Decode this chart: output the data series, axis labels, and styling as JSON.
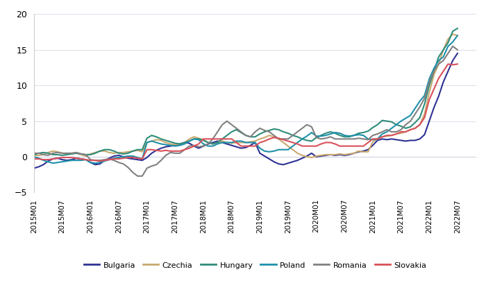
{
  "title": "",
  "countries": [
    "Bulgaria",
    "Czechia",
    "Hungary",
    "Poland",
    "Romania",
    "Slovakia"
  ],
  "colors": [
    "#2e3192",
    "#c8a96e",
    "#2e8b7a",
    "#1e90aa",
    "#808080",
    "#d94f5a"
  ],
  "linewidths": [
    1.5,
    1.5,
    1.5,
    1.5,
    1.5,
    1.5
  ],
  "ylim": [
    -5,
    20
  ],
  "yticks": [
    -5,
    0,
    5,
    10,
    15,
    20
  ],
  "background_color": "#ffffff",
  "grid_color": "#d0d0e0",
  "tick_labels": [
    "2015M01",
    "2015M07",
    "2016M01",
    "2016M07",
    "2017M01",
    "2017M07",
    "2018M01",
    "2018M07",
    "2019M01",
    "2019M07",
    "2020M01",
    "2020M07",
    "2021M01",
    "2021M07",
    "2022M01",
    "2022M07"
  ],
  "tick_positions": [
    0,
    6,
    12,
    18,
    24,
    30,
    36,
    42,
    48,
    54,
    60,
    66,
    72,
    78,
    84,
    90
  ],
  "data": {
    "Bulgaria": [
      -1.6,
      -1.4,
      -1.1,
      -0.6,
      -0.3,
      -0.2,
      -0.4,
      -0.5,
      -0.4,
      -0.2,
      -0.3,
      -0.4,
      -0.8,
      -1.1,
      -1.0,
      -0.5,
      -0.2,
      0.1,
      0.2,
      0.0,
      -0.2,
      -0.3,
      -0.4,
      -0.5,
      -0.1,
      0.5,
      0.9,
      1.2,
      1.4,
      1.5,
      1.6,
      1.8,
      2.0,
      1.9,
      1.5,
      1.2,
      1.5,
      1.8,
      2.0,
      2.2,
      2.0,
      1.8,
      1.6,
      1.4,
      1.2,
      1.3,
      1.6,
      2.0,
      0.5,
      0.1,
      -0.3,
      -0.7,
      -1.0,
      -1.1,
      -0.9,
      -0.7,
      -0.5,
      -0.2,
      0.1,
      0.5,
      0.0,
      0.1,
      0.2,
      0.3,
      0.2,
      0.3,
      0.2,
      0.3,
      0.5,
      0.7,
      0.8,
      1.0,
      1.6,
      2.3,
      2.5,
      2.4,
      2.5,
      2.4,
      2.3,
      2.2,
      2.3,
      2.3,
      2.5,
      3.1,
      5.0,
      6.9,
      8.5,
      10.5,
      12.0,
      13.5,
      14.5
    ],
    "Czechia": [
      0.2,
      0.2,
      0.3,
      0.6,
      0.8,
      0.7,
      0.5,
      0.4,
      0.5,
      0.5,
      0.3,
      0.1,
      0.4,
      0.6,
      0.8,
      0.8,
      0.6,
      0.5,
      0.6,
      0.6,
      0.7,
      0.8,
      0.9,
      0.7,
      2.0,
      2.2,
      2.4,
      2.3,
      2.0,
      1.8,
      1.7,
      1.8,
      2.0,
      2.5,
      2.8,
      2.6,
      2.4,
      2.0,
      1.8,
      2.0,
      2.2,
      2.0,
      1.9,
      2.0,
      2.0,
      2.0,
      2.1,
      2.2,
      2.5,
      2.7,
      3.0,
      2.8,
      2.5,
      2.0,
      1.5,
      1.0,
      0.5,
      0.2,
      0.0,
      -0.1,
      0.1,
      0.2,
      0.3,
      0.3,
      0.3,
      0.4,
      0.3,
      0.4,
      0.5,
      0.8,
      0.7,
      0.7,
      2.1,
      2.5,
      2.8,
      2.9,
      3.0,
      3.2,
      3.3,
      3.5,
      3.8,
      4.0,
      4.5,
      6.0,
      9.0,
      11.5,
      13.0,
      15.0,
      16.5,
      17.2,
      17.0
    ],
    "Hungary": [
      0.3,
      0.5,
      0.6,
      0.5,
      0.3,
      0.3,
      0.2,
      0.3,
      0.4,
      0.5,
      0.4,
      0.3,
      0.3,
      0.5,
      0.8,
      1.0,
      1.0,
      0.8,
      0.5,
      0.4,
      0.5,
      0.8,
      1.0,
      1.0,
      2.6,
      3.0,
      2.8,
      2.5,
      2.3,
      2.1,
      1.9,
      1.8,
      2.0,
      2.2,
      2.5,
      2.5,
      2.3,
      2.0,
      1.8,
      2.0,
      2.5,
      3.0,
      3.5,
      3.8,
      3.4,
      3.0,
      2.8,
      2.8,
      3.2,
      3.5,
      3.7,
      3.9,
      3.8,
      3.5,
      3.3,
      3.0,
      2.8,
      2.5,
      2.3,
      2.2,
      2.7,
      3.0,
      3.3,
      3.5,
      3.3,
      3.0,
      2.8,
      2.8,
      3.0,
      3.3,
      3.4,
      3.6,
      4.1,
      4.5,
      5.1,
      5.0,
      4.9,
      4.5,
      4.3,
      4.0,
      4.2,
      4.8,
      5.5,
      7.4,
      10.0,
      12.0,
      14.0,
      15.0,
      16.0,
      17.6,
      18.0
    ],
    "Poland": [
      0.0,
      -0.2,
      -0.5,
      -0.7,
      -0.9,
      -0.8,
      -0.7,
      -0.6,
      -0.5,
      -0.5,
      -0.5,
      -0.4,
      -0.8,
      -0.9,
      -0.8,
      -0.6,
      -0.4,
      -0.2,
      -0.1,
      0.0,
      0.1,
      0.1,
      -0.1,
      -0.3,
      2.0,
      2.2,
      2.0,
      1.8,
      1.7,
      1.6,
      1.5,
      1.6,
      1.8,
      2.2,
      2.5,
      2.4,
      1.8,
      1.5,
      1.5,
      1.8,
      2.0,
      2.0,
      2.0,
      2.2,
      2.2,
      2.0,
      2.0,
      2.0,
      1.2,
      0.8,
      0.7,
      0.8,
      1.0,
      1.0,
      1.0,
      1.5,
      2.0,
      2.5,
      2.9,
      3.4,
      2.9,
      2.9,
      3.0,
      3.2,
      3.4,
      3.3,
      3.0,
      2.9,
      3.0,
      3.1,
      3.0,
      2.5,
      2.4,
      2.5,
      3.2,
      3.5,
      4.0,
      4.5,
      5.0,
      5.4,
      5.8,
      6.8,
      7.8,
      8.6,
      10.9,
      12.4,
      13.5,
      14.0,
      15.5,
      16.1,
      17.0
    ],
    "Romania": [
      0.5,
      0.5,
      0.3,
      0.2,
      0.5,
      0.6,
      0.5,
      0.5,
      0.5,
      0.6,
      0.4,
      0.3,
      -0.4,
      -0.5,
      -0.5,
      -0.4,
      -0.3,
      -0.5,
      -0.8,
      -1.0,
      -1.5,
      -2.2,
      -2.7,
      -2.7,
      -1.6,
      -1.3,
      -1.1,
      -0.5,
      0.2,
      0.6,
      0.5,
      0.5,
      1.0,
      1.5,
      1.6,
      1.4,
      1.5,
      1.8,
      2.5,
      3.5,
      4.5,
      5.0,
      4.5,
      4.0,
      3.5,
      3.0,
      2.8,
      3.5,
      4.0,
      3.7,
      3.5,
      3.0,
      2.5,
      2.5,
      2.5,
      3.0,
      3.5,
      4.0,
      4.5,
      4.2,
      2.7,
      2.5,
      2.6,
      2.8,
      2.5,
      2.5,
      2.5,
      2.5,
      2.5,
      2.6,
      2.5,
      2.4,
      3.0,
      3.2,
      3.5,
      3.8,
      3.5,
      3.5,
      3.8,
      4.5,
      5.0,
      6.0,
      7.0,
      8.2,
      10.5,
      12.0,
      13.0,
      13.5,
      14.5,
      15.5,
      15.0
    ],
    "Slovakia": [
      -0.3,
      -0.3,
      -0.4,
      -0.4,
      -0.3,
      -0.2,
      -0.1,
      -0.1,
      -0.1,
      -0.2,
      -0.3,
      -0.4,
      -0.5,
      -0.5,
      -0.6,
      -0.5,
      -0.4,
      -0.3,
      -0.3,
      -0.2,
      -0.1,
      -0.1,
      -0.2,
      -0.3,
      1.0,
      1.0,
      0.9,
      0.8,
      0.9,
      0.8,
      0.8,
      0.8,
      1.0,
      1.2,
      1.5,
      1.8,
      2.5,
      2.5,
      2.5,
      2.5,
      2.5,
      2.5,
      2.5,
      2.0,
      1.5,
      1.5,
      1.5,
      1.5,
      2.0,
      2.2,
      2.5,
      2.7,
      2.6,
      2.4,
      2.2,
      2.0,
      1.8,
      1.5,
      1.5,
      1.5,
      1.5,
      1.8,
      2.0,
      2.0,
      1.8,
      1.5,
      1.5,
      1.5,
      1.5,
      1.5,
      1.5,
      2.0,
      2.5,
      2.5,
      2.8,
      3.0,
      3.0,
      3.2,
      3.5,
      3.5,
      3.8,
      4.0,
      4.5,
      5.5,
      8.0,
      9.5,
      11.0,
      12.0,
      13.0,
      12.9,
      13.0
    ]
  }
}
